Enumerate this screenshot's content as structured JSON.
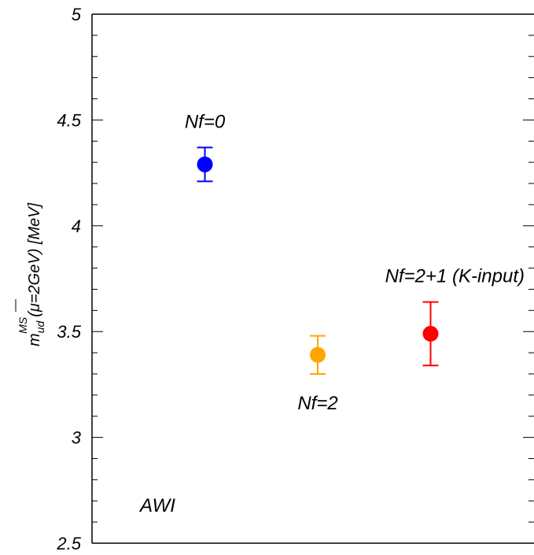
{
  "chart_data": {
    "type": "scatter",
    "ylabel_main": "m",
    "ylabel_sub": "ud",
    "ylabel_sup": "MS",
    "ylabel_rest": "(μ=2GeV) [MeV]",
    "ylim": [
      2.5,
      5
    ],
    "yticks": [
      "2.5",
      "3",
      "3.5",
      "4",
      "4.5",
      "5"
    ],
    "ytick_values": [
      2.5,
      3,
      3.5,
      4,
      4.5,
      5
    ],
    "xlim": [
      0,
      4
    ],
    "grid": false,
    "series": [
      {
        "label": "Nf=0",
        "x": 1,
        "y": 4.29,
        "err_low": 0.08,
        "err_high": 0.08,
        "color": "#0000ff",
        "label_pos": "above"
      },
      {
        "label": "Nf=2",
        "x": 2,
        "y": 3.39,
        "err_low": 0.09,
        "err_high": 0.09,
        "color": "#ffa500",
        "label_pos": "below"
      },
      {
        "label": "Nf=2+1 (K-input)",
        "x": 3,
        "y": 3.49,
        "err_low": 0.15,
        "err_high": 0.15,
        "color": "#ff0000",
        "label_pos": "above"
      }
    ],
    "annotation": "AWI"
  }
}
